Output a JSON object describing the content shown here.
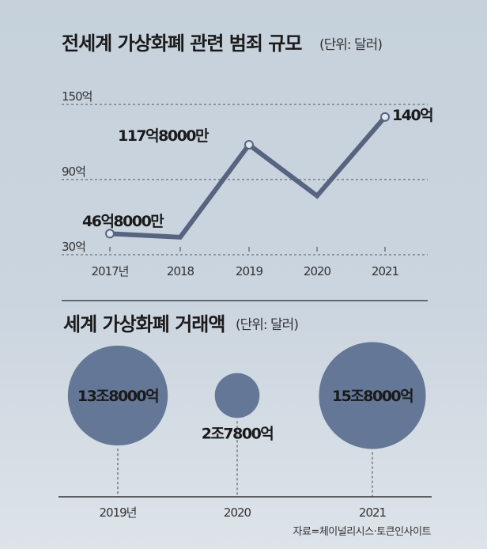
{
  "chart_data": [
    {
      "type": "line",
      "title": "전세계 가상화폐 관련 범죄 규모",
      "unit": "(단위: 달러)",
      "categories": [
        "2017년",
        "2018",
        "2019",
        "2020",
        "2021"
      ],
      "values": [
        46.8,
        44,
        117.8,
        77,
        140
      ],
      "value_unit": "억 달러",
      "data_labels": [
        "46억8000만",
        "",
        "117억8000만",
        "",
        "140억"
      ],
      "y_ticks": [
        {
          "value": 30,
          "label": "30억"
        },
        {
          "value": 90,
          "label": "90억"
        },
        {
          "value": 150,
          "label": "150억"
        }
      ],
      "ylim": [
        30,
        150
      ],
      "grid": true,
      "color": "#56647f"
    },
    {
      "type": "scatter",
      "subtype": "bubble",
      "title": "세계 가상화폐 거래액",
      "unit": "(단위: 달러)",
      "categories": [
        "2019년",
        "2020",
        "2021"
      ],
      "values": [
        13.8,
        2.78,
        15.8
      ],
      "value_unit": "조 달러",
      "data_labels": [
        "13조8000억",
        "2조7800억",
        "15조8000억"
      ],
      "color": "#647796"
    }
  ],
  "source": "자료=체이널리시스·토큰인사이트"
}
